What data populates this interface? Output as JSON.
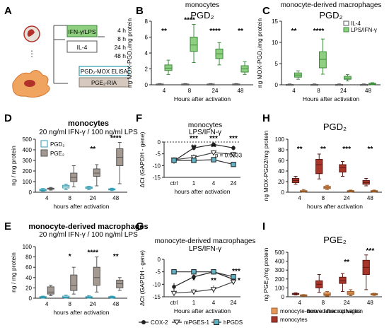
{
  "colors": {
    "green_fill": "#8fcf80",
    "green_stroke": "#3d8a3d",
    "teal": "#2e9bb0",
    "lightblue": "#8fd0df",
    "gray_box": "#a59a91",
    "dark_red": "#a8342a",
    "orange": "#e5985a",
    "black": "#222222"
  },
  "panelA": {
    "letter": "A",
    "stim1": "IFN-γ/LPS",
    "stim2": "IL-4",
    "times": [
      "4 h",
      "8 h",
      "24 h",
      "48 h"
    ],
    "assay1": "PGD₂-MOX ELISA",
    "assay2": "PGE₂-RIA"
  },
  "labels": {
    "B": "B",
    "C": "C",
    "D": "D",
    "E": "E",
    "F": "F",
    "G": "G",
    "H": "H",
    "I": "I"
  },
  "chart_data": [
    {
      "panel": "B",
      "type": "box",
      "title": "monocytes",
      "subtitle": "PGD₂",
      "xlabel": "Hours after activation",
      "ylabel": "ng MOX-PGD₂/mg protein",
      "ylim": [
        0,
        8
      ],
      "yticks": [
        0,
        2,
        4,
        6,
        8
      ],
      "categories": [
        "4",
        "8",
        "24",
        "48"
      ],
      "series": [
        {
          "name": "IL-4",
          "boxes": [
            [
              0,
              0,
              0.05,
              0.1,
              0.15
            ],
            [
              0,
              0,
              0.05,
              0.1,
              0.15
            ],
            [
              0,
              0,
              0.05,
              0.1,
              0.15
            ],
            [
              0,
              0,
              0.05,
              0.1,
              0.15
            ]
          ]
        },
        {
          "name": "LPS/IFN-γ",
          "boxes": [
            [
              1.3,
              1.8,
              2.1,
              2.5,
              3.1
            ],
            [
              2.8,
              4.2,
              5.0,
              6.0,
              7.6
            ],
            [
              2.5,
              3.3,
              3.9,
              4.5,
              5.3
            ],
            [
              1.3,
              1.6,
              2.0,
              2.4,
              2.9
            ]
          ]
        }
      ],
      "significance": [
        "**",
        "****",
        "****",
        "**"
      ]
    },
    {
      "panel": "C",
      "type": "box",
      "title": "monocyte-derived macrophages",
      "subtitle": "PGD₂",
      "xlabel": "Hours after activation",
      "ylabel": "ng MOX-PGD₂/mg protein",
      "ylim": [
        0,
        15
      ],
      "yticks": [
        0,
        5,
        10,
        15
      ],
      "categories": [
        "4",
        "8",
        "24",
        "48"
      ],
      "series": [
        {
          "name": "IL-4",
          "boxes": [
            [
              0,
              0,
              0.05,
              0.1,
              0.2
            ],
            [
              0,
              0,
              0.05,
              0.1,
              0.2
            ],
            [
              0,
              0,
              0.05,
              0.1,
              0.2
            ],
            [
              0,
              0,
              0.05,
              0.1,
              0.2
            ]
          ]
        },
        {
          "name": "LPS/IFN-γ",
          "boxes": [
            [
              1.3,
              1.8,
              2.3,
              2.8,
              3.3
            ],
            [
              2.5,
              4.0,
              6.0,
              7.8,
              10.8
            ],
            [
              0.9,
              1.3,
              1.6,
              2.0,
              2.4
            ],
            [
              0,
              0.1,
              0.2,
              0.35,
              0.5
            ]
          ]
        }
      ],
      "significance": [
        "**",
        "****",
        "",
        ""
      ]
    },
    {
      "panel": "D",
      "type": "box",
      "title": "monocytes",
      "subtitle": "20 ng/ml IFN-γ / 100 ng/ml LPS",
      "xlabel": "hours after activation",
      "ylabel": "ng / mg protein",
      "ylim": [
        0,
        500
      ],
      "yticks": [
        0,
        100,
        200,
        300,
        400,
        500
      ],
      "categories": [
        "4",
        "8",
        "24",
        "48"
      ],
      "series": [
        {
          "name": "PGD₂",
          "boxes": [
            [
              10,
              15,
              20,
              28,
              35
            ],
            [
              25,
              40,
              55,
              65,
              75
            ],
            [
              25,
              35,
              42,
              50,
              55
            ],
            [
              15,
              22,
              28,
              32,
              38
            ]
          ]
        },
        {
          "name": "PGE₂",
          "boxes": [
            [
              20,
              28,
              33,
              38,
              45
            ],
            [
              50,
              100,
              140,
              180,
              250
            ],
            [
              60,
              150,
              180,
              220,
              260
            ],
            [
              80,
              250,
              330,
              410,
              470
            ]
          ]
        }
      ],
      "significance": [
        "",
        "",
        "**",
        "****"
      ]
    },
    {
      "panel": "E",
      "type": "box",
      "title": "monocyte-derived macrophages",
      "subtitle": "20 ng/ml IFN-γ / 100 ng/ml LPS",
      "xlabel": "hours after activation",
      "ylabel": "ng / mg protein",
      "ylim": [
        0,
        100
      ],
      "yticks": [
        0,
        20,
        40,
        60,
        80,
        100
      ],
      "categories": [
        "4",
        "8",
        "24",
        "48"
      ],
      "series": [
        {
          "name": "PGD₂",
          "boxes": [
            [
              0,
              1,
              2,
              3,
              4
            ],
            [
              0,
              1,
              2,
              4,
              6
            ],
            [
              0,
              1,
              2,
              3,
              5
            ],
            [
              0,
              1,
              2,
              3,
              4
            ]
          ]
        },
        {
          "name": "PGE₂",
          "boxes": [
            [
              5,
              8,
              12,
              22,
              25
            ],
            [
              8,
              15,
              25,
              45,
              60
            ],
            [
              12,
              25,
              40,
              60,
              80
            ],
            [
              15,
              20,
              28,
              35,
              40
            ]
          ]
        }
      ],
      "significance": [
        "",
        "*",
        "****",
        "**"
      ]
    },
    {
      "panel": "F",
      "type": "line",
      "title": "monocytes",
      "subtitle": "LPS/IFN-γ",
      "xlabel": "hours after activation",
      "ylabel": "ΔCt (GAPDH - gene)",
      "ylim": [
        -15,
        0
      ],
      "yticks": [
        0,
        -5,
        -10,
        -15
      ],
      "x": [
        "ctrl",
        "1",
        "4",
        "24"
      ],
      "series": [
        {
          "name": "COX-2",
          "values": [
            -8,
            -2.5,
            -1,
            -2.5
          ],
          "err": [
            1.2,
            1.0,
            0.8,
            1.0
          ]
        },
        {
          "name": "mPGES-1",
          "values": [
            -7.5,
            -6.5,
            -4.5,
            -5.2
          ],
          "err": [
            1.0,
            1.2,
            1.0,
            1.0
          ]
        },
        {
          "name": "hPGDS",
          "values": [
            -7.8,
            -7.8,
            -7.5,
            -9.5
          ],
          "err": [
            1.0,
            0.8,
            0.8,
            1.0
          ]
        }
      ],
      "stars": [
        "",
        "***",
        "***",
        "***"
      ],
      "stars2": [
        "",
        "**",
        "**",
        ""
      ],
      "annotation": "p = 0.0033"
    },
    {
      "panel": "G",
      "type": "line",
      "title": "monocyte-derived macrophages",
      "subtitle": "LPS/IFN-γ",
      "xlabel": "Hours after activation",
      "ylabel": "ΔCt (GAPDH - gene)",
      "ylim": [
        -15,
        0
      ],
      "yticks": [
        0,
        -5,
        -10,
        -15
      ],
      "x": [
        "ctrl",
        "1",
        "4",
        "24"
      ],
      "series": [
        {
          "name": "COX-2",
          "values": [
            -11,
            -7,
            -5,
            -8
          ],
          "err": [
            1.5,
            1.2,
            1.0,
            1.2
          ]
        },
        {
          "name": "mPGES-1",
          "values": [
            -13.5,
            -13,
            -12,
            -9
          ],
          "err": [
            1.0,
            1.2,
            1.5,
            1.2
          ]
        },
        {
          "name": "hPGDS",
          "values": [
            -5,
            -5,
            -5,
            -7
          ],
          "err": [
            0.8,
            0.8,
            0.8,
            1.0
          ]
        }
      ],
      "stars_low": [
        "",
        "*",
        "**",
        "*"
      ],
      "stars_teal": [
        "",
        "",
        "",
        "***"
      ]
    },
    {
      "panel": "H",
      "type": "box",
      "title": "PGD₂",
      "xlabel": "hours after activation",
      "ylabel": "ng MOX-PGD2/mg protein",
      "ylim": [
        0,
        100
      ],
      "yticks": [
        0,
        20,
        40,
        60,
        80,
        100
      ],
      "categories": [
        "4",
        "8",
        "24",
        "48"
      ],
      "series": [
        {
          "name": "monocytes",
          "boxes": [
            [
              15,
              18,
              22,
              26,
              30
            ],
            [
              25,
              35,
              52,
              62,
              72
            ],
            [
              30,
              38,
              46,
              52,
              58
            ],
            [
              12,
              15,
              18,
              22,
              26
            ]
          ]
        },
        {
          "name": "monocyte-derived macrophages",
          "boxes": [
            [
              0,
              1,
              2,
              3,
              5
            ],
            [
              5,
              7,
              9,
              11,
              13
            ],
            [
              0,
              1,
              2,
              3,
              4
            ],
            [
              0,
              1,
              2,
              3,
              4
            ]
          ]
        }
      ],
      "significance": [
        "**",
        "**",
        "***",
        "**"
      ]
    },
    {
      "panel": "I",
      "type": "box",
      "title": "PGE₂",
      "xlabel": "hours after activation",
      "ylabel": "ng PGE₂/mg protein",
      "ylim": [
        0,
        500
      ],
      "yticks": [
        0,
        100,
        200,
        300,
        400,
        500
      ],
      "categories": [
        "4",
        "8",
        "24",
        "48"
      ],
      "series": [
        {
          "name": "monocytes",
          "boxes": [
            [
              20,
              28,
              33,
              38,
              45
            ],
            [
              50,
              100,
              140,
              180,
              250
            ],
            [
              60,
              150,
              180,
              220,
              260
            ],
            [
              80,
              250,
              330,
              410,
              470
            ]
          ]
        },
        {
          "name": "monocyte-derived macrophages",
          "boxes": [
            [
              5,
              10,
              15,
              22,
              25
            ],
            [
              8,
              15,
              25,
              45,
              60
            ],
            [
              12,
              25,
              40,
              60,
              80
            ],
            [
              15,
              20,
              28,
              35,
              40
            ]
          ]
        }
      ],
      "significance": [
        "",
        "",
        "**",
        "***"
      ]
    }
  ],
  "legend_FG": [
    "COX-2",
    "mPGES-1",
    "hPGDS"
  ],
  "legend_HI": [
    "monocyte-derived macrophages",
    "monocytes"
  ]
}
